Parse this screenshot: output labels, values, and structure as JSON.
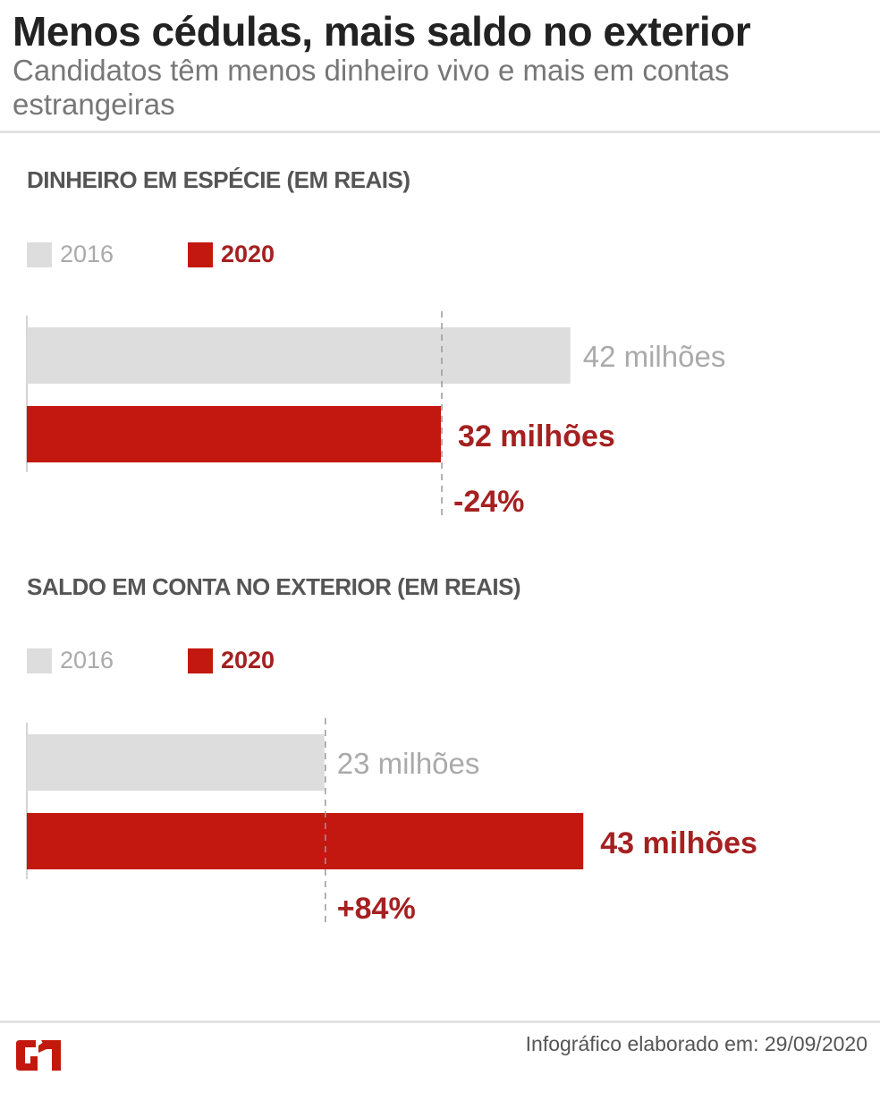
{
  "header": {
    "title": "Menos cédulas, mais saldo no exterior",
    "subtitle": "Candidatos têm menos dinheiro vivo e mais em contas estrangeiras"
  },
  "colors": {
    "y2016": "#dddddd",
    "y2020": "#c3180f",
    "label2016": "#aaaaaa",
    "label2020": "#a52020"
  },
  "chart_data": [
    {
      "type": "bar",
      "orientation": "horizontal",
      "title": "DINHEIRO EM ESPÉCIE (EM REAIS)",
      "legend": [
        "2016",
        "2020"
      ],
      "legend_placement": "top-left",
      "series": [
        {
          "name": "2016",
          "value": 42,
          "label": "42 milhões"
        },
        {
          "name": "2020",
          "value": 32,
          "label": "32 milhões"
        }
      ],
      "unit": "milhões de reais",
      "change_label": "-24%",
      "reference_line_at": "2016"
    },
    {
      "type": "bar",
      "orientation": "horizontal",
      "title": "SALDO EM CONTA NO EXTERIOR (EM REAIS)",
      "legend": [
        "2016",
        "2020"
      ],
      "legend_placement": "top-left",
      "series": [
        {
          "name": "2016",
          "value": 23,
          "label": "23 milhões"
        },
        {
          "name": "2020",
          "value": 43,
          "label": "43 milhões"
        }
      ],
      "unit": "milhões de reais",
      "change_label": "+84%",
      "reference_line_at": "2016"
    }
  ],
  "footer": {
    "logo": "G1",
    "credit": "Infográfico elaborado em: 29/09/2020"
  }
}
